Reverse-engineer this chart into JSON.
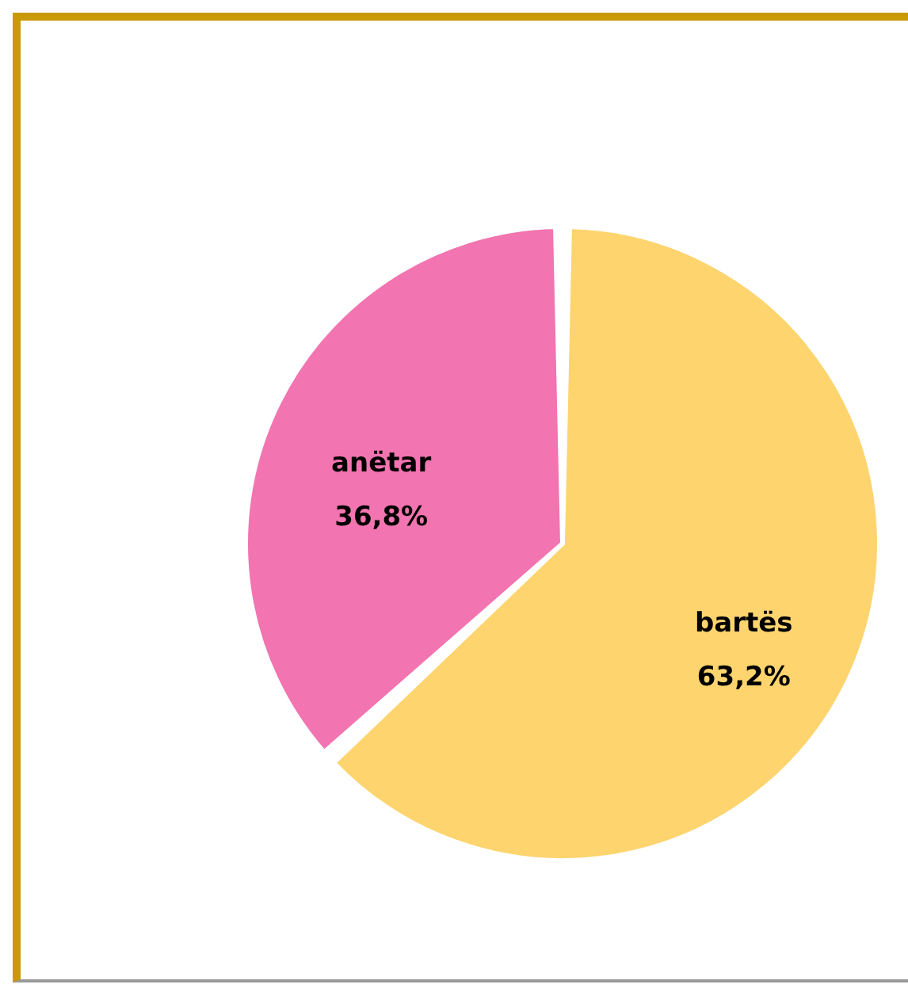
{
  "chart_data": {
    "type": "pie",
    "categories": [
      "bartës",
      "anëtar"
    ],
    "values": [
      63.2,
      36.8
    ],
    "colors": [
      "#fdd46e",
      "#f274b0"
    ],
    "value_labels": [
      "63,2%",
      "36,8%"
    ],
    "legend": false
  }
}
